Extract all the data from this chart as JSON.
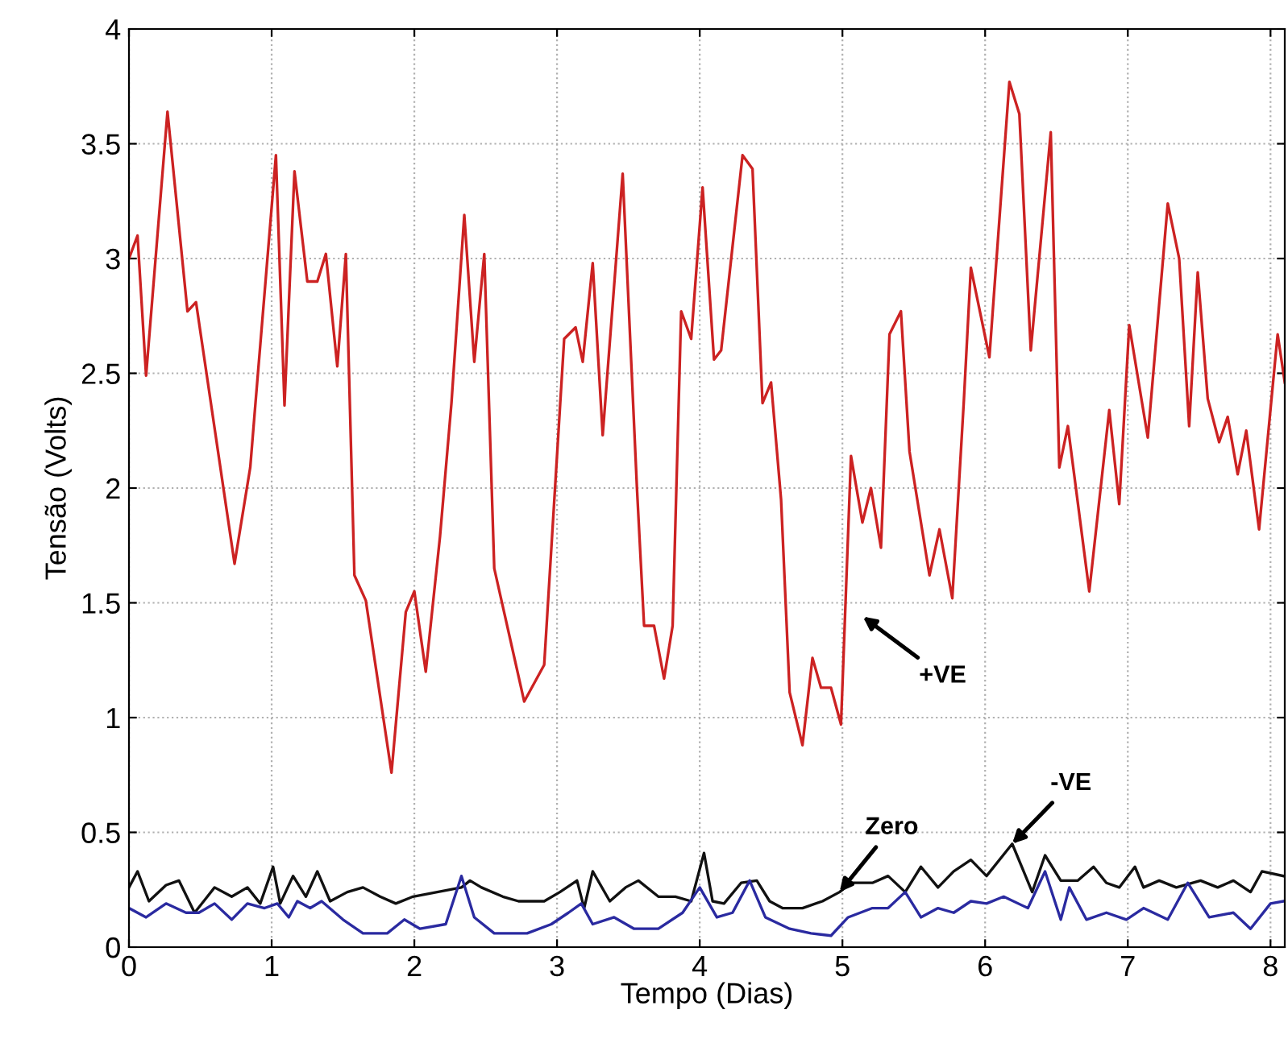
{
  "chart_data": {
    "type": "line",
    "xlabel": "Tempo (Dias)",
    "ylabel": "Tensão (Volts)",
    "xlim": [
      0,
      8.1
    ],
    "ylim": [
      0,
      4
    ],
    "xticks": [
      0,
      1,
      2,
      3,
      4,
      5,
      6,
      7,
      8
    ],
    "yticks": [
      0,
      0.5,
      1,
      1.5,
      2,
      2.5,
      3,
      3.5,
      4
    ],
    "grid": true,
    "line_style": "solid",
    "series": [
      {
        "color": "#cc2222",
        "x": [
          0,
          0.06,
          0.12,
          0.27,
          0.41,
          0.47,
          0.74,
          0.85,
          0.88,
          1.03,
          1.09,
          1.16,
          1.25,
          1.32,
          1.38,
          1.46,
          1.52,
          1.58,
          1.66,
          1.84,
          1.94,
          2.0,
          2.08,
          2.18,
          2.26,
          2.35,
          2.42,
          2.49,
          2.56,
          2.77,
          2.91,
          3.05,
          3.13,
          3.18,
          3.25,
          3.32,
          3.46,
          3.56,
          3.61,
          3.68,
          3.75,
          3.81,
          3.87,
          3.94,
          4.02,
          4.1,
          4.15,
          4.3,
          4.37,
          4.44,
          4.5,
          4.57,
          4.63,
          4.72,
          4.79,
          4.85,
          4.92,
          4.99,
          5.06,
          5.14,
          5.2,
          5.27,
          5.33,
          5.41,
          5.47,
          5.61,
          5.68,
          5.77,
          5.85,
          5.9,
          6.03,
          6.17,
          6.24,
          6.32,
          6.46,
          6.52,
          6.58,
          6.73,
          6.87,
          6.94,
          7.01,
          7.14,
          7.28,
          7.36,
          7.43,
          7.49,
          7.56,
          7.64,
          7.7,
          7.77,
          7.83,
          7.92,
          8.05,
          8.1
        ],
        "values": [
          3.0,
          3.1,
          2.49,
          3.64,
          2.77,
          2.81,
          1.67,
          2.09,
          2.32,
          3.45,
          2.36,
          3.38,
          2.9,
          2.9,
          3.02,
          2.53,
          3.02,
          1.62,
          1.51,
          0.76,
          1.46,
          1.55,
          1.2,
          1.79,
          2.37,
          3.19,
          2.55,
          3.02,
          1.65,
          1.07,
          1.23,
          2.65,
          2.7,
          2.55,
          2.98,
          2.23,
          3.37,
          2.0,
          1.4,
          1.4,
          1.17,
          1.4,
          2.77,
          2.65,
          3.31,
          2.56,
          2.6,
          3.45,
          3.39,
          2.37,
          2.46,
          1.95,
          1.11,
          0.88,
          1.26,
          1.13,
          1.13,
          0.97,
          2.14,
          1.85,
          2.0,
          1.74,
          2.67,
          2.77,
          2.16,
          1.62,
          1.82,
          1.52,
          2.37,
          2.96,
          2.57,
          3.77,
          3.63,
          2.6,
          3.55,
          2.09,
          2.27,
          1.55,
          2.34,
          1.93,
          2.71,
          2.22,
          3.24,
          3.0,
          2.27,
          2.94,
          2.39,
          2.2,
          2.31,
          2.06,
          2.25,
          1.82,
          2.67,
          2.46
        ]
      },
      {
        "color": "#111111",
        "x": [
          0,
          0.06,
          0.14,
          0.26,
          0.35,
          0.46,
          0.6,
          0.72,
          0.83,
          0.92,
          1.01,
          1.06,
          1.15,
          1.24,
          1.32,
          1.41,
          1.53,
          1.64,
          1.76,
          1.87,
          1.99,
          2.16,
          2.33,
          2.39,
          2.47,
          2.62,
          2.73,
          2.91,
          3.02,
          3.14,
          3.19,
          3.25,
          3.37,
          3.48,
          3.57,
          3.71,
          3.83,
          3.94,
          4.03,
          4.09,
          4.17,
          4.29,
          4.4,
          4.49,
          4.58,
          4.72,
          4.86,
          4.98,
          5.06,
          5.21,
          5.32,
          5.44,
          5.55,
          5.67,
          5.78,
          5.9,
          6.01,
          6.19,
          6.33,
          6.42,
          6.53,
          6.65,
          6.76,
          6.85,
          6.94,
          7.05,
          7.11,
          7.22,
          7.34,
          7.51,
          7.63,
          7.74,
          7.86,
          7.94,
          8.09
        ],
        "values": [
          0.26,
          0.33,
          0.2,
          0.27,
          0.29,
          0.15,
          0.26,
          0.22,
          0.26,
          0.19,
          0.35,
          0.19,
          0.31,
          0.22,
          0.33,
          0.2,
          0.24,
          0.26,
          0.22,
          0.19,
          0.22,
          0.24,
          0.26,
          0.29,
          0.26,
          0.22,
          0.2,
          0.2,
          0.24,
          0.29,
          0.17,
          0.33,
          0.2,
          0.26,
          0.29,
          0.22,
          0.22,
          0.2,
          0.41,
          0.2,
          0.19,
          0.28,
          0.29,
          0.2,
          0.17,
          0.17,
          0.2,
          0.24,
          0.28,
          0.28,
          0.31,
          0.24,
          0.35,
          0.26,
          0.33,
          0.38,
          0.31,
          0.45,
          0.24,
          0.4,
          0.29,
          0.29,
          0.35,
          0.28,
          0.26,
          0.35,
          0.26,
          0.29,
          0.26,
          0.29,
          0.26,
          0.29,
          0.24,
          0.33,
          0.31
        ]
      },
      {
        "color": "#2a2aa0",
        "x": [
          0,
          0.12,
          0.26,
          0.4,
          0.49,
          0.6,
          0.72,
          0.83,
          0.95,
          1.04,
          1.12,
          1.18,
          1.27,
          1.35,
          1.5,
          1.64,
          1.81,
          1.93,
          2.04,
          2.22,
          2.33,
          2.42,
          2.56,
          2.79,
          2.96,
          3.08,
          3.17,
          3.25,
          3.4,
          3.54,
          3.71,
          3.88,
          4.0,
          4.12,
          4.23,
          4.35,
          4.46,
          4.63,
          4.78,
          4.92,
          5.04,
          5.21,
          5.32,
          5.44,
          5.55,
          5.67,
          5.78,
          5.9,
          6.01,
          6.13,
          6.3,
          6.42,
          6.53,
          6.59,
          6.71,
          6.85,
          6.99,
          7.11,
          7.28,
          7.42,
          7.57,
          7.74,
          7.86,
          8.0,
          8.09
        ],
        "values": [
          0.17,
          0.13,
          0.19,
          0.15,
          0.15,
          0.19,
          0.12,
          0.19,
          0.17,
          0.19,
          0.13,
          0.2,
          0.17,
          0.2,
          0.12,
          0.06,
          0.06,
          0.12,
          0.08,
          0.1,
          0.31,
          0.13,
          0.06,
          0.06,
          0.1,
          0.15,
          0.19,
          0.1,
          0.13,
          0.08,
          0.08,
          0.15,
          0.26,
          0.13,
          0.15,
          0.29,
          0.13,
          0.08,
          0.06,
          0.05,
          0.13,
          0.17,
          0.17,
          0.24,
          0.13,
          0.17,
          0.15,
          0.2,
          0.19,
          0.22,
          0.17,
          0.33,
          0.12,
          0.26,
          0.12,
          0.15,
          0.12,
          0.17,
          0.12,
          0.28,
          0.13,
          0.15,
          0.08,
          0.19,
          0.2
        ]
      }
    ],
    "annotations": [
      "+VE",
      {
        "text": "Zero",
        "x": 4.98,
        "y": 0.24
      },
      {
        "text": "-VE",
        "x": 6.19,
        "y": 0.45
      }
    ]
  }
}
